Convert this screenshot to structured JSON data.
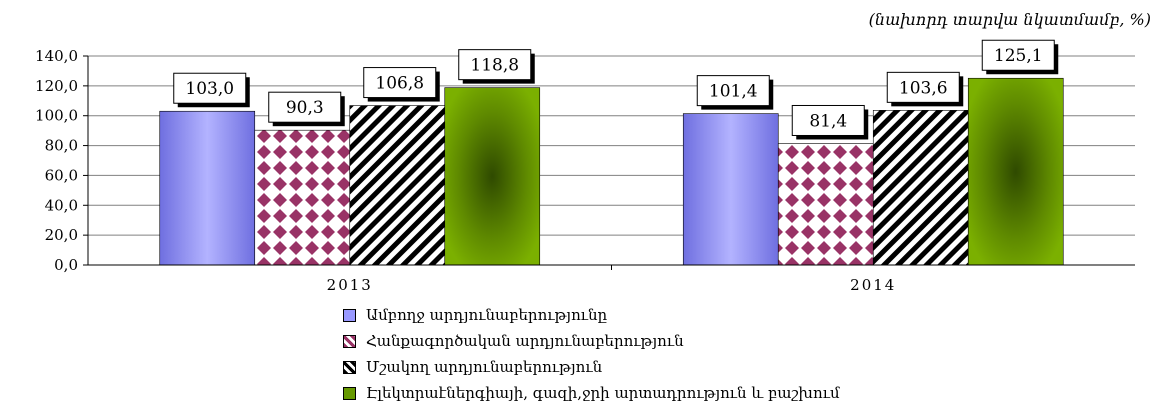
{
  "unit_note": "(նախորդ տարվա նկատմամբ, %)",
  "chart_data": {
    "type": "bar",
    "categories": [
      "2013",
      "2014"
    ],
    "series": [
      {
        "name": "Ամբողջ արդյունաբերությունը",
        "values": [
          103.0,
          101.4
        ],
        "labels": [
          "103,0",
          "101,4"
        ],
        "color": "#9999ff"
      },
      {
        "name": "Հանքագործական արդյունաբերություն",
        "values": [
          90.3,
          81.4
        ],
        "labels": [
          "90,3",
          "81,4"
        ],
        "color": "#993366"
      },
      {
        "name": "Մշակող արդյունաբերություն",
        "values": [
          106.8,
          103.6
        ],
        "labels": [
          "106,8",
          "103,6"
        ],
        "color": "#000000"
      },
      {
        "name": "Էլեկտրաէներգիայի, գազի,ջրի արտադրություն և բաշխում",
        "values": [
          118.8,
          125.1
        ],
        "labels": [
          "118,8",
          "125,1"
        ],
        "color": "#669900"
      }
    ],
    "ylim": [
      0,
      140
    ],
    "yticks": [
      "0,0",
      "20,0",
      "40,0",
      "60,0",
      "80,0",
      "100,0",
      "120,0",
      "140,0"
    ],
    "grid": true,
    "legend_position": "bottom"
  }
}
